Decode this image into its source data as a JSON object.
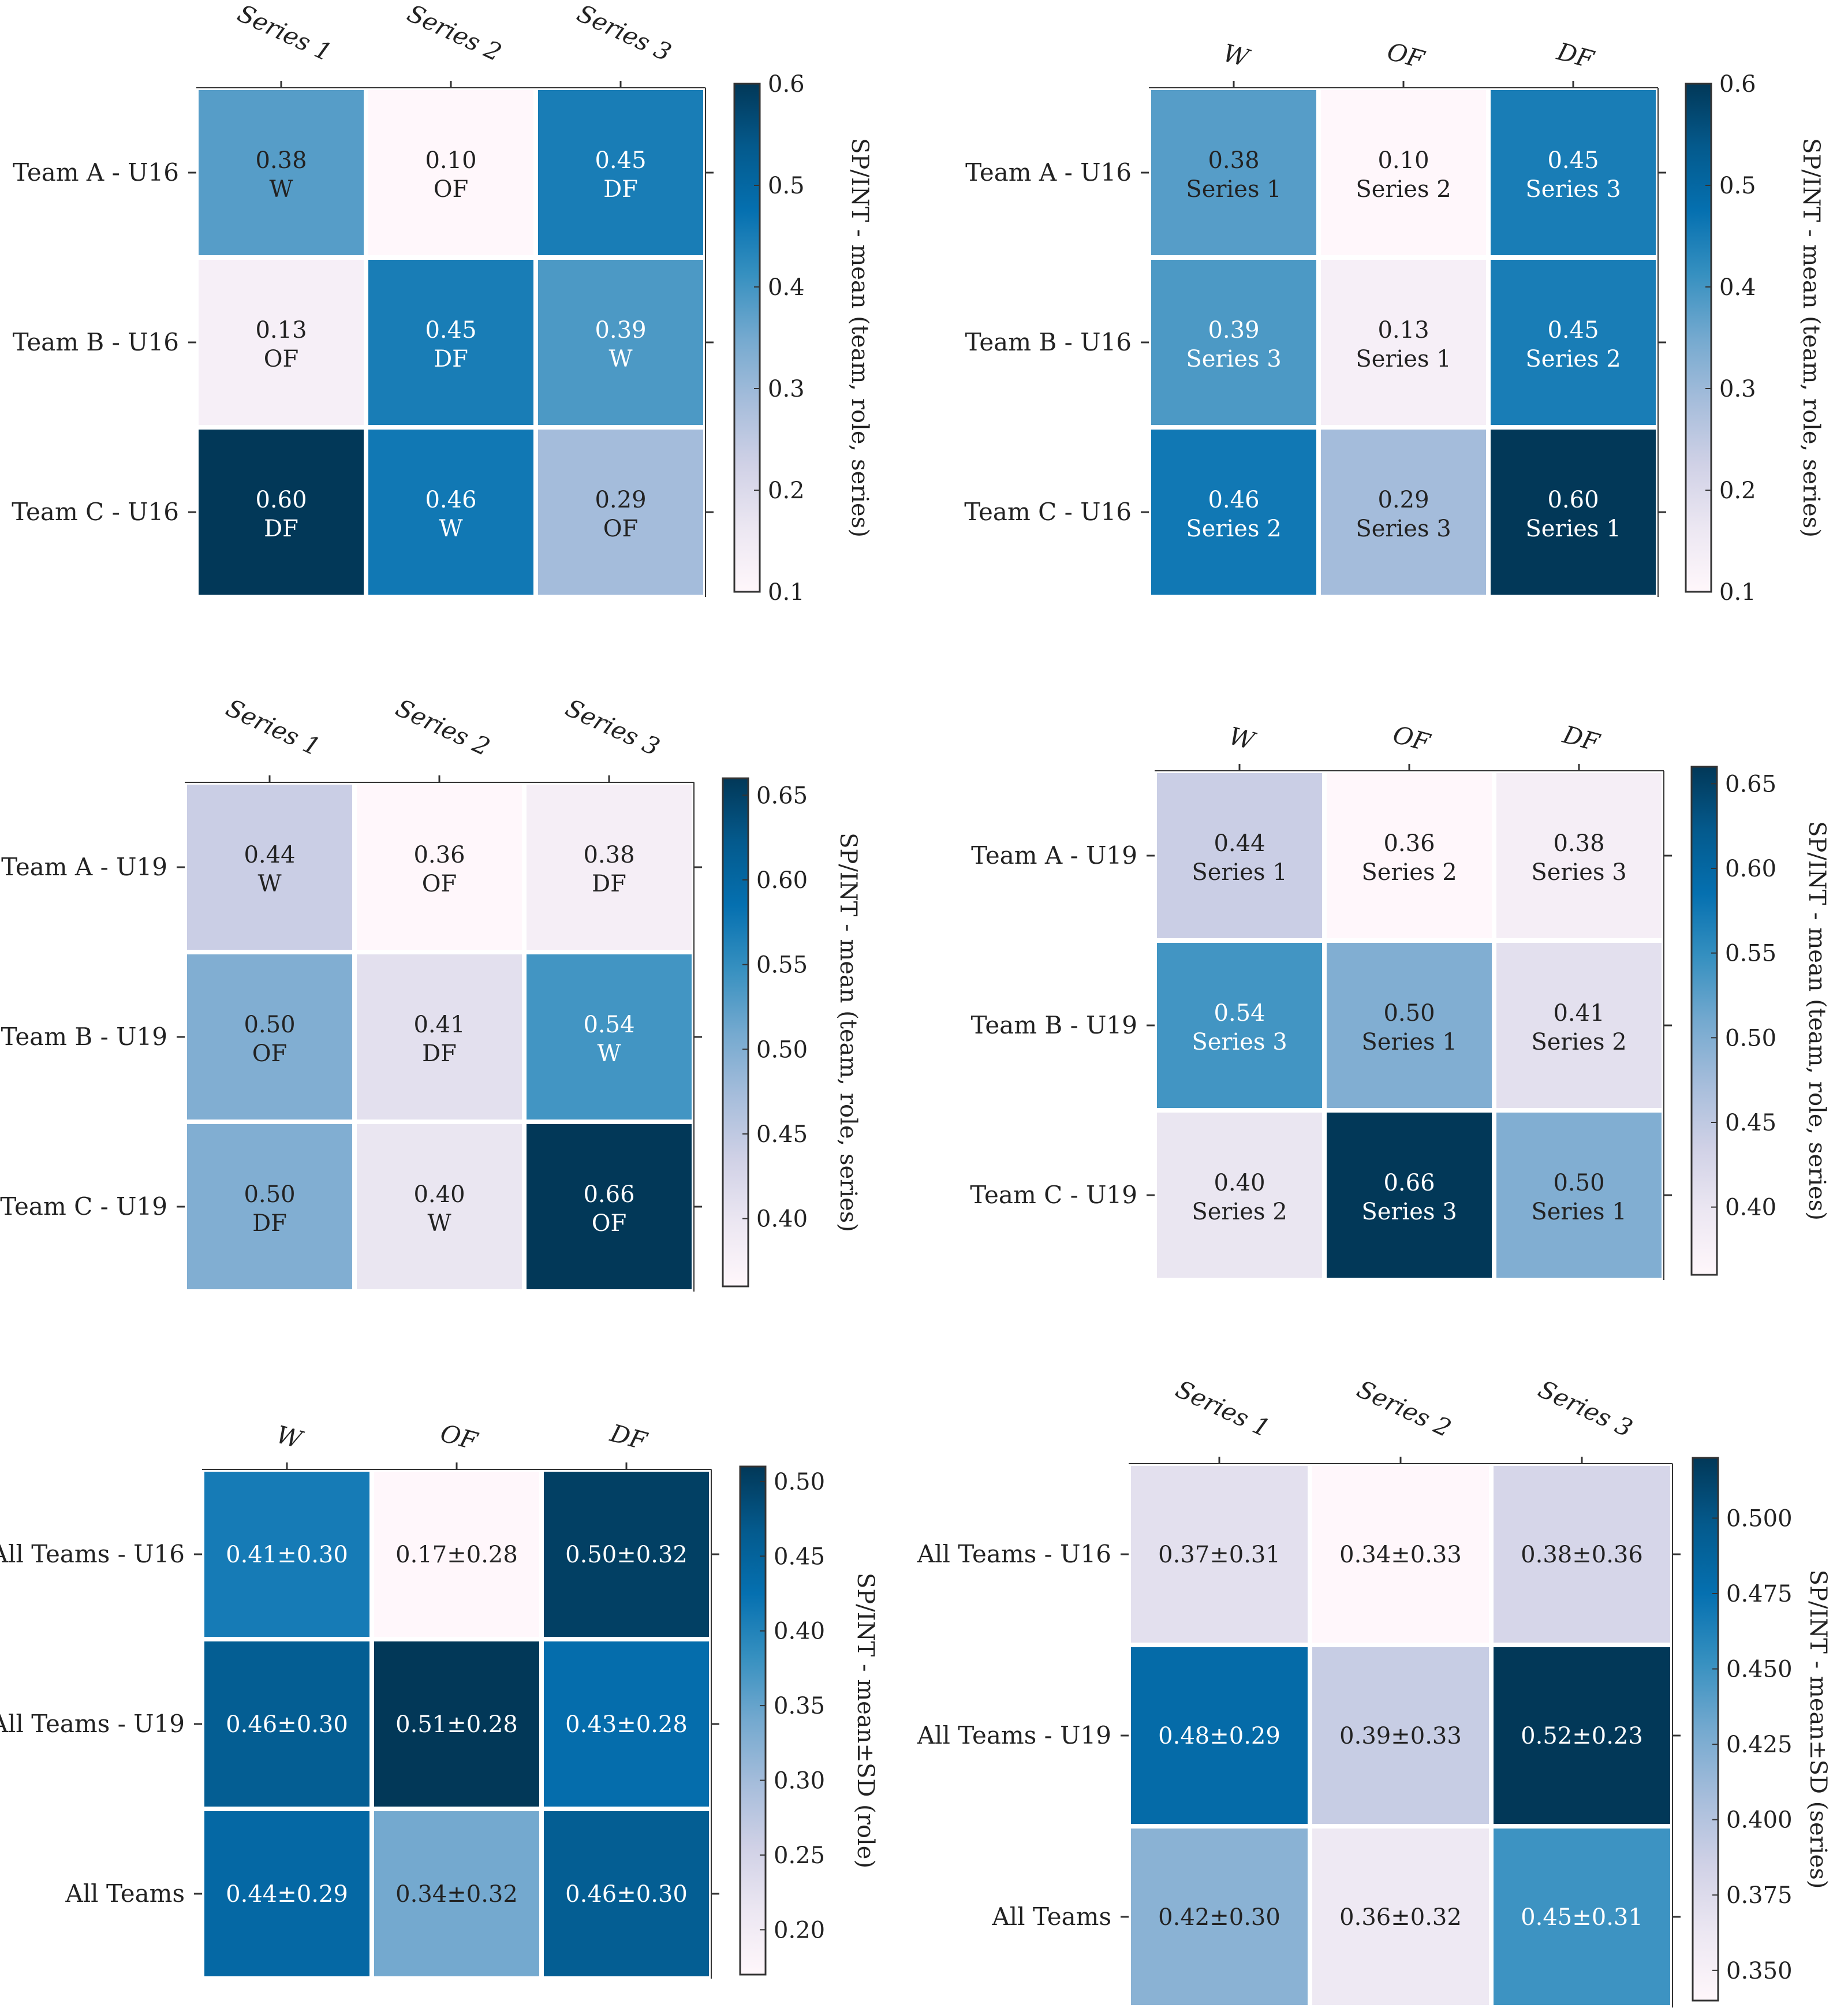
{
  "chart_data": [
    {
      "type": "heatmap",
      "columns": [
        "Series 1",
        "Series 2",
        "Series 3"
      ],
      "columns_rotated": true,
      "rows": [
        "Team A - U16",
        "Team B - U16",
        "Team C - U16"
      ],
      "values": [
        [
          0.38,
          0.1,
          0.45
        ],
        [
          0.13,
          0.45,
          0.39
        ],
        [
          0.6,
          0.46,
          0.29
        ]
      ],
      "cell_text": [
        [
          "0.38",
          "0.10",
          "0.45"
        ],
        [
          "0.13",
          "0.45",
          "0.39"
        ],
        [
          "0.60",
          "0.46",
          "0.29"
        ]
      ],
      "cell_sublabels": [
        [
          "W",
          "OF",
          "DF"
        ],
        [
          "OF",
          "DF",
          "W"
        ],
        [
          "DF",
          "W",
          "OF"
        ]
      ],
      "colorbar": {
        "label": "SP/INT - mean (team, role, series)",
        "min": 0.1,
        "max": 0.6,
        "ticks": [
          "0.1",
          "0.2",
          "0.3",
          "0.4",
          "0.5",
          "0.6"
        ]
      }
    },
    {
      "type": "heatmap",
      "columns": [
        "W",
        "OF",
        "DF"
      ],
      "columns_rotated": false,
      "rows": [
        "Team A - U16",
        "Team B - U16",
        "Team C - U16"
      ],
      "values": [
        [
          0.38,
          0.1,
          0.45
        ],
        [
          0.39,
          0.13,
          0.45
        ],
        [
          0.46,
          0.29,
          0.6
        ]
      ],
      "cell_text": [
        [
          "0.38",
          "0.10",
          "0.45"
        ],
        [
          "0.39",
          "0.13",
          "0.45"
        ],
        [
          "0.46",
          "0.29",
          "0.60"
        ]
      ],
      "cell_sublabels": [
        [
          "Series 1",
          "Series 2",
          "Series 3"
        ],
        [
          "Series 3",
          "Series 1",
          "Series 2"
        ],
        [
          "Series 2",
          "Series 3",
          "Series 1"
        ]
      ],
      "colorbar": {
        "label": "SP/INT - mean (team, role, series)",
        "min": 0.1,
        "max": 0.6,
        "ticks": [
          "0.1",
          "0.2",
          "0.3",
          "0.4",
          "0.5",
          "0.6"
        ]
      }
    },
    {
      "type": "heatmap",
      "columns": [
        "Series 1",
        "Series 2",
        "Series 3"
      ],
      "columns_rotated": true,
      "rows": [
        "Team A - U19",
        "Team B - U19",
        "Team C - U19"
      ],
      "values": [
        [
          0.44,
          0.36,
          0.38
        ],
        [
          0.5,
          0.41,
          0.54
        ],
        [
          0.5,
          0.4,
          0.66
        ]
      ],
      "cell_text": [
        [
          "0.44",
          "0.36",
          "0.38"
        ],
        [
          "0.50",
          "0.41",
          "0.54"
        ],
        [
          "0.50",
          "0.40",
          "0.66"
        ]
      ],
      "cell_sublabels": [
        [
          "W",
          "OF",
          "DF"
        ],
        [
          "OF",
          "DF",
          "W"
        ],
        [
          "DF",
          "W",
          "OF"
        ]
      ],
      "colorbar": {
        "label": "SP/INT - mean (team, role, series)",
        "min": 0.36,
        "max": 0.66,
        "ticks": [
          "0.40",
          "0.45",
          "0.50",
          "0.55",
          "0.60",
          "0.65"
        ]
      }
    },
    {
      "type": "heatmap",
      "columns": [
        "W",
        "OF",
        "DF"
      ],
      "columns_rotated": false,
      "rows": [
        "Team A - U19",
        "Team B - U19",
        "Team C - U19"
      ],
      "values": [
        [
          0.44,
          0.36,
          0.38
        ],
        [
          0.54,
          0.5,
          0.41
        ],
        [
          0.4,
          0.66,
          0.5
        ]
      ],
      "cell_text": [
        [
          "0.44",
          "0.36",
          "0.38"
        ],
        [
          "0.54",
          "0.50",
          "0.41"
        ],
        [
          "0.40",
          "0.66",
          "0.50"
        ]
      ],
      "cell_sublabels": [
        [
          "Series 1",
          "Series 2",
          "Series 3"
        ],
        [
          "Series 3",
          "Series 1",
          "Series 2"
        ],
        [
          "Series 2",
          "Series 3",
          "Series 1"
        ]
      ],
      "colorbar": {
        "label": "SP/INT - mean (team, role, series)",
        "min": 0.36,
        "max": 0.66,
        "ticks": [
          "0.40",
          "0.45",
          "0.50",
          "0.55",
          "0.60",
          "0.65"
        ]
      }
    },
    {
      "type": "heatmap",
      "columns": [
        "W",
        "OF",
        "DF"
      ],
      "columns_rotated": false,
      "rows": [
        "All Teams - U16",
        "All Teams - U19",
        "All Teams"
      ],
      "values": [
        [
          0.41,
          0.17,
          0.5
        ],
        [
          0.46,
          0.51,
          0.43
        ],
        [
          0.44,
          0.34,
          0.46
        ]
      ],
      "cell_text": [
        [
          "0.41±0.30",
          "0.17±0.28",
          "0.50±0.32"
        ],
        [
          "0.46±0.30",
          "0.51±0.28",
          "0.43±0.28"
        ],
        [
          "0.44±0.29",
          "0.34±0.32",
          "0.46±0.30"
        ]
      ],
      "cell_sublabels": null,
      "colorbar": {
        "label": "SP/INT - mean±SD (role)",
        "min": 0.17,
        "max": 0.51,
        "ticks": [
          "0.20",
          "0.25",
          "0.30",
          "0.35",
          "0.40",
          "0.45",
          "0.50"
        ]
      }
    },
    {
      "type": "heatmap",
      "columns": [
        "Series 1",
        "Series 2",
        "Series 3"
      ],
      "columns_rotated": true,
      "rows": [
        "All Teams - U16",
        "All Teams - U19",
        "All Teams"
      ],
      "values": [
        [
          0.37,
          0.34,
          0.38
        ],
        [
          0.48,
          0.39,
          0.52
        ],
        [
          0.42,
          0.36,
          0.45
        ]
      ],
      "cell_text": [
        [
          "0.37±0.31",
          "0.34±0.33",
          "0.38±0.36"
        ],
        [
          "0.48±0.29",
          "0.39±0.33",
          "0.52±0.23"
        ],
        [
          "0.42±0.30",
          "0.36±0.32",
          "0.45±0.31"
        ]
      ],
      "cell_sublabels": null,
      "colorbar": {
        "label": "SP/INT - mean±SD (series)",
        "min": 0.34,
        "max": 0.52,
        "ticks": [
          "0.350",
          "0.375",
          "0.400",
          "0.425",
          "0.450",
          "0.475",
          "0.500"
        ]
      }
    }
  ]
}
